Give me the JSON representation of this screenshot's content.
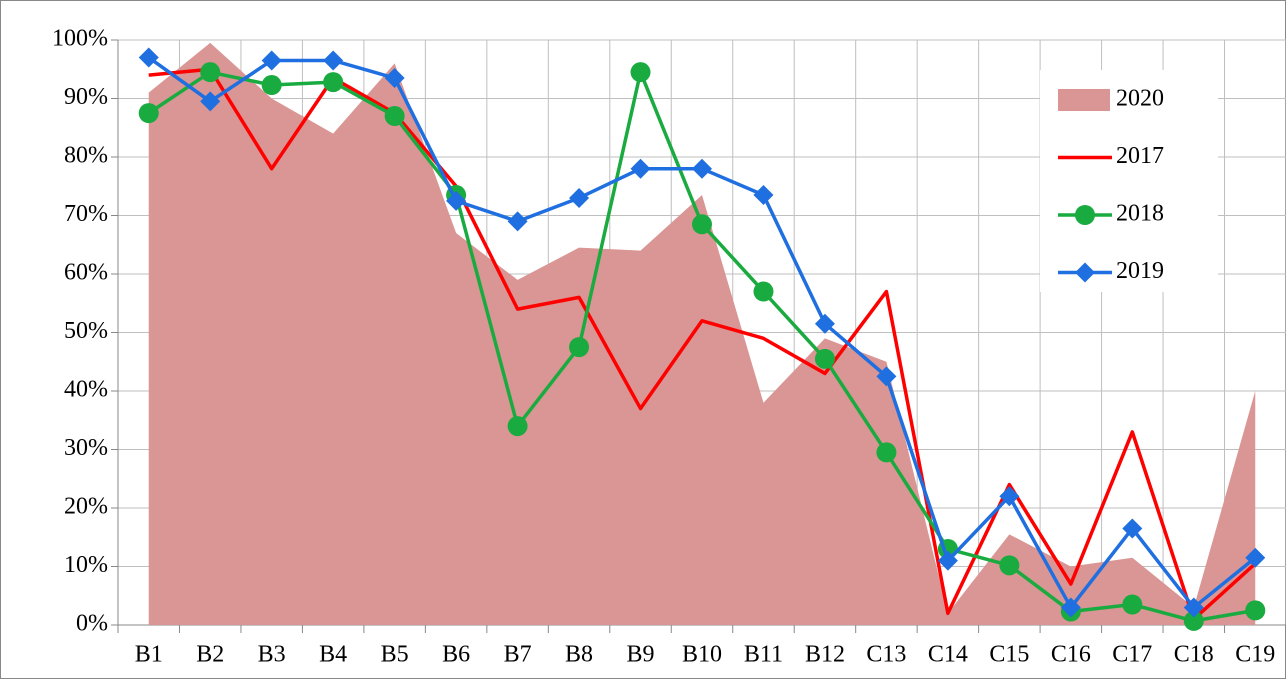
{
  "chart_data": {
    "type": "line",
    "categories": [
      "B1",
      "B2",
      "B3",
      "B4",
      "B5",
      "B6",
      "B7",
      "B8",
      "B9",
      "B10",
      "B11",
      "B12",
      "C13",
      "C14",
      "C15",
      "C16",
      "C17",
      "C18",
      "C19"
    ],
    "series": [
      {
        "name": "2020",
        "kind": "area",
        "color": "#d99694",
        "values": [
          91,
          99.5,
          90,
          84,
          96,
          67,
          59,
          64.5,
          64,
          73.5,
          38,
          49,
          45,
          2,
          15.5,
          10,
          11.5,
          3,
          40
        ]
      },
      {
        "name": "2017",
        "kind": "line",
        "color": "#ff0000",
        "values": [
          94,
          95,
          78,
          93.5,
          87.5,
          75,
          54,
          56,
          37,
          52,
          49,
          43,
          57,
          2,
          24,
          7,
          33,
          1,
          10.5
        ]
      },
      {
        "name": "2018",
        "kind": "line",
        "marker": "circle",
        "color": "#1aab40",
        "values": [
          87.5,
          94.5,
          92.3,
          92.8,
          87,
          73.5,
          34,
          47.5,
          94.5,
          68.5,
          57,
          45.5,
          29.5,
          13,
          10.2,
          2.3,
          3.5,
          0.7,
          2.5
        ]
      },
      {
        "name": "2019",
        "kind": "line",
        "marker": "diamond",
        "color": "#1f6fe0",
        "values": [
          97,
          89.5,
          96.5,
          96.5,
          93.5,
          72.5,
          69,
          73,
          78,
          78,
          73.5,
          51.5,
          42.5,
          11,
          22,
          3,
          16.5,
          3,
          11.5
        ]
      }
    ],
    "ylim": [
      0,
      100
    ],
    "yticks": [
      {
        "value": 0,
        "label": "0%"
      },
      {
        "value": 10,
        "label": "10%"
      },
      {
        "value": 20,
        "label": "20%"
      },
      {
        "value": 30,
        "label": "30%"
      },
      {
        "value": 40,
        "label": "40%"
      },
      {
        "value": 50,
        "label": "50%"
      },
      {
        "value": 60,
        "label": "60%"
      },
      {
        "value": 70,
        "label": "70%"
      },
      {
        "value": 80,
        "label": "80%"
      },
      {
        "value": 90,
        "label": "90%"
      },
      {
        "value": 100,
        "label": "100%"
      }
    ],
    "grid": true,
    "legend": "upper right"
  }
}
